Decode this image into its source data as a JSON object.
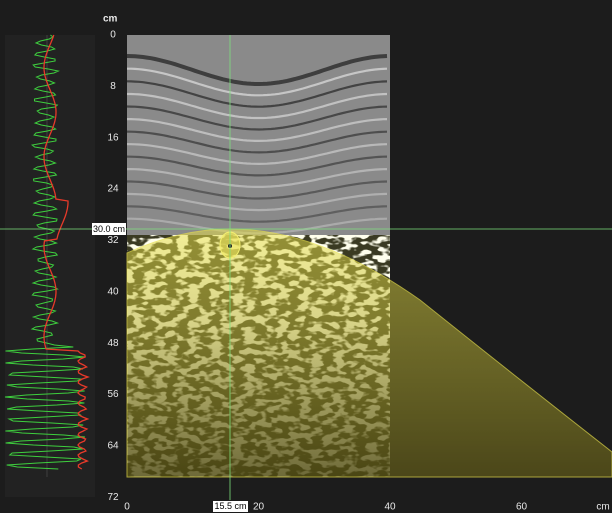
{
  "axes": {
    "y_unit": "cm",
    "y_ticks": [
      0,
      8,
      16,
      24,
      32,
      40,
      48,
      56,
      64,
      72
    ],
    "x_unit": "cm",
    "x_ticks": [
      0,
      20,
      40,
      60
    ]
  },
  "cursor": {
    "depth_label": "30.0 cm",
    "position_label": "15.5 cm"
  }
}
